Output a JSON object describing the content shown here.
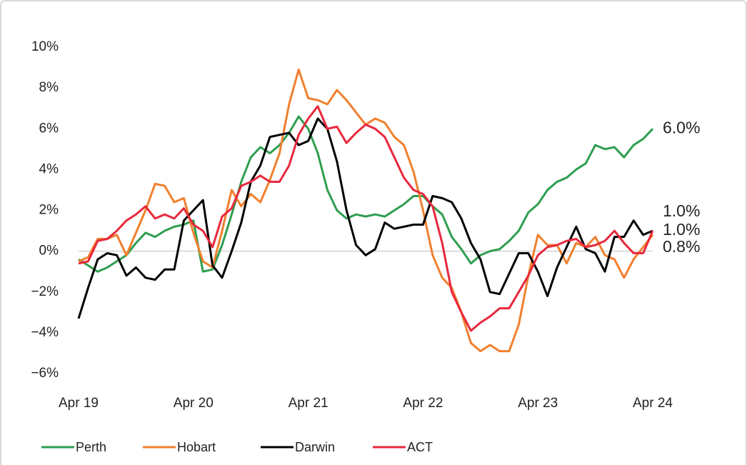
{
  "chart_data": {
    "type": "line",
    "categories": [
      "Apr 19",
      null,
      null,
      null,
      null,
      null,
      null,
      null,
      null,
      null,
      null,
      null,
      "Apr 20",
      null,
      null,
      null,
      null,
      null,
      null,
      null,
      null,
      null,
      null,
      null,
      "Apr 21",
      null,
      null,
      null,
      null,
      null,
      null,
      null,
      null,
      null,
      null,
      null,
      "Apr 22",
      null,
      null,
      null,
      null,
      null,
      null,
      null,
      null,
      null,
      null,
      null,
      "Apr 23",
      null,
      null,
      null,
      null,
      null,
      null,
      null,
      null,
      null,
      null,
      null,
      "Apr 24"
    ],
    "ylim": [
      -6,
      10
    ],
    "yticks": [
      {
        "value": -6,
        "label": "−6%"
      },
      {
        "value": -4,
        "label": "−4%"
      },
      {
        "value": -2,
        "label": "−2%"
      },
      {
        "value": 0,
        "label": "0%"
      },
      {
        "value": 2,
        "label": "2%"
      },
      {
        "value": 4,
        "label": "4%"
      },
      {
        "value": 6,
        "label": "6%"
      },
      {
        "value": 8,
        "label": "8%"
      },
      {
        "value": 10,
        "label": "10%"
      }
    ],
    "grid": false,
    "legend": "bottom",
    "series": [
      {
        "name": "Perth",
        "color": "#2e9e4f",
        "values": [
          -0.4,
          -0.7,
          -1.0,
          -0.8,
          -0.5,
          -0.2,
          0.4,
          0.9,
          0.7,
          1.0,
          1.2,
          1.3,
          1.5,
          -1.0,
          -0.9,
          0.3,
          1.8,
          3.4,
          4.6,
          5.1,
          4.8,
          5.2,
          5.8,
          6.6,
          6.0,
          4.8,
          3.0,
          2.0,
          1.6,
          1.8,
          1.7,
          1.8,
          1.7,
          2.0,
          2.3,
          2.7,
          2.7,
          2.2,
          1.8,
          0.7,
          0.1,
          -0.6,
          -0.2,
          0.0,
          0.1,
          0.5,
          1.0,
          1.9,
          2.3,
          3.0,
          3.4,
          3.6,
          4.0,
          4.3,
          5.2,
          5.0,
          5.1,
          4.6,
          5.2,
          5.5,
          6.0
        ],
        "value_labels": [
          null,
          null,
          null,
          null,
          null,
          null,
          null,
          null,
          null,
          null,
          null,
          null,
          null,
          null,
          null,
          null,
          null,
          null,
          null,
          null,
          null,
          null,
          null,
          null,
          null,
          null,
          null,
          null,
          null,
          null,
          null,
          null,
          null,
          null,
          null,
          null,
          null,
          null,
          null,
          null,
          null,
          null,
          null,
          null,
          null,
          null,
          null,
          null,
          null,
          null,
          null,
          null,
          null,
          null,
          null,
          null,
          null,
          null,
          null,
          null,
          "6.0%"
        ]
      },
      {
        "name": "Hobart",
        "color": "#f0802e",
        "values": [
          -0.5,
          -0.3,
          0.6,
          0.6,
          0.8,
          -0.2,
          0.9,
          2.0,
          3.3,
          3.2,
          2.4,
          2.6,
          0.9,
          -0.5,
          -0.8,
          1.0,
          3.0,
          2.2,
          2.8,
          2.4,
          3.5,
          4.8,
          7.2,
          8.9,
          7.5,
          7.4,
          7.2,
          7.9,
          7.4,
          6.8,
          6.2,
          6.5,
          6.3,
          5.6,
          5.2,
          3.9,
          2.0,
          -0.2,
          -1.3,
          -1.8,
          -3.0,
          -4.5,
          -4.9,
          -4.6,
          -4.9,
          -4.9,
          -3.6,
          -1.2,
          0.8,
          0.3,
          0.3,
          -0.6,
          0.4,
          0.2,
          0.7,
          -0.2,
          -0.4,
          -1.3,
          -0.4,
          0.2,
          0.8
        ],
        "value_labels": [
          null,
          null,
          null,
          null,
          null,
          null,
          null,
          null,
          null,
          null,
          null,
          null,
          null,
          null,
          null,
          null,
          null,
          null,
          null,
          null,
          null,
          null,
          null,
          null,
          null,
          null,
          null,
          null,
          null,
          null,
          null,
          null,
          null,
          null,
          null,
          null,
          null,
          null,
          null,
          null,
          null,
          null,
          null,
          null,
          null,
          null,
          null,
          null,
          null,
          null,
          null,
          null,
          null,
          null,
          null,
          null,
          null,
          null,
          null,
          null,
          "0.8%"
        ]
      },
      {
        "name": "Darwin",
        "color": "#000000",
        "values": [
          -3.3,
          -1.8,
          -0.4,
          -0.1,
          -0.2,
          -1.2,
          -0.8,
          -1.3,
          -1.4,
          -0.9,
          -0.9,
          1.5,
          2.0,
          2.5,
          -0.7,
          -1.3,
          0.0,
          1.4,
          3.4,
          4.2,
          5.6,
          5.7,
          5.8,
          5.2,
          5.4,
          6.5,
          6.0,
          4.4,
          2.0,
          0.3,
          -0.2,
          0.1,
          1.4,
          1.1,
          1.2,
          1.3,
          1.3,
          2.7,
          2.6,
          2.4,
          1.6,
          0.4,
          -0.4,
          -2.0,
          -2.1,
          -1.1,
          -0.1,
          -0.1,
          -1.0,
          -2.2,
          -0.8,
          0.2,
          1.2,
          0.1,
          -0.1,
          -1.0,
          0.7,
          0.7,
          1.5,
          0.8,
          1.0
        ],
        "value_labels": [
          null,
          null,
          null,
          null,
          null,
          null,
          null,
          null,
          null,
          null,
          null,
          null,
          null,
          null,
          null,
          null,
          null,
          null,
          null,
          null,
          null,
          null,
          null,
          null,
          null,
          null,
          null,
          null,
          null,
          null,
          null,
          null,
          null,
          null,
          null,
          null,
          null,
          null,
          null,
          null,
          null,
          null,
          null,
          null,
          null,
          null,
          null,
          null,
          null,
          null,
          null,
          null,
          null,
          null,
          null,
          null,
          null,
          null,
          null,
          null,
          "1.0%"
        ]
      },
      {
        "name": "ACT",
        "color": "#e8283c",
        "values": [
          -0.6,
          -0.5,
          0.5,
          0.6,
          1.0,
          1.5,
          1.8,
          2.2,
          1.6,
          1.8,
          1.6,
          2.1,
          1.3,
          1.0,
          0.2,
          1.7,
          2.1,
          3.2,
          3.4,
          3.7,
          3.4,
          3.4,
          4.2,
          5.7,
          6.5,
          7.1,
          6.0,
          6.1,
          5.3,
          5.8,
          6.2,
          6.0,
          5.6,
          4.6,
          3.6,
          3.0,
          2.8,
          2.2,
          0.4,
          -2.0,
          -3.0,
          -3.9,
          -3.5,
          -3.2,
          -2.8,
          -2.8,
          -2.0,
          -1.2,
          -0.2,
          0.2,
          0.3,
          0.5,
          0.6,
          0.2,
          0.3,
          0.5,
          1.0,
          0.4,
          -0.1,
          -0.1,
          1.0
        ],
        "value_labels": [
          null,
          null,
          null,
          null,
          null,
          null,
          null,
          null,
          null,
          null,
          null,
          null,
          null,
          null,
          null,
          null,
          null,
          null,
          null,
          null,
          null,
          null,
          null,
          null,
          null,
          null,
          null,
          null,
          null,
          null,
          null,
          null,
          null,
          null,
          null,
          null,
          null,
          null,
          null,
          null,
          null,
          null,
          null,
          null,
          null,
          null,
          null,
          null,
          null,
          null,
          null,
          null,
          null,
          null,
          null,
          null,
          null,
          null,
          null,
          null,
          "1.0%"
        ]
      }
    ]
  }
}
